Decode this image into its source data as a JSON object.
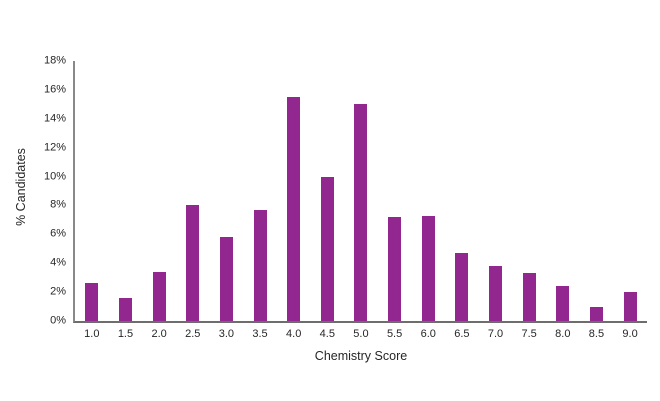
{
  "chart_data": {
    "type": "bar",
    "title": "",
    "xlabel": "Chemistry Score",
    "ylabel": "% Candidates",
    "categories": [
      "1.0",
      "1.5",
      "2.0",
      "2.5",
      "3.0",
      "3.5",
      "4.0",
      "4.5",
      "5.0",
      "5.5",
      "6.0",
      "6.5",
      "7.0",
      "7.5",
      "8.0",
      "8.5",
      "9.0"
    ],
    "values": [
      2.6,
      1.6,
      3.4,
      8.0,
      5.8,
      7.7,
      15.5,
      10.0,
      15.0,
      7.2,
      7.3,
      4.7,
      3.8,
      3.3,
      2.4,
      1.0,
      2.0
    ],
    "ylim": [
      0,
      18
    ],
    "y_ticks": [
      {
        "label": "0%",
        "value": 0
      },
      {
        "label": "2%",
        "value": 2
      },
      {
        "label": "4%",
        "value": 4
      },
      {
        "label": "6%",
        "value": 6
      },
      {
        "label": "8%",
        "value": 8
      },
      {
        "label": "10%",
        "value": 10
      },
      {
        "label": "12%",
        "value": 12
      },
      {
        "label": "14%",
        "value": 14
      },
      {
        "label": "16%",
        "value": 16
      },
      {
        "label": "18%",
        "value": 18
      }
    ],
    "grid": false,
    "legend": "none",
    "bar_color": "#92278F",
    "axis_line_color": "#7F7F7F",
    "tick_label_color": "#262626"
  }
}
